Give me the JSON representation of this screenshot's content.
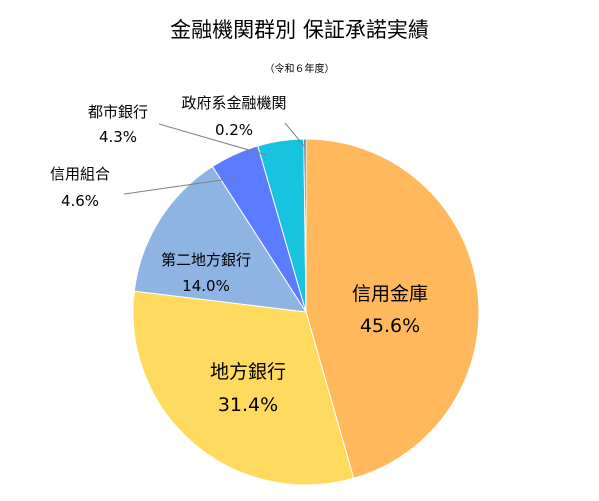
{
  "chart_data": {
    "type": "pie",
    "title": "金融機関群別 保証承諾実績",
    "subtitle": "（令和６年度）",
    "slices": [
      {
        "label": "信用金庫",
        "value": 45.6,
        "display": "45.6%",
        "color": "#FFB95C"
      },
      {
        "label": "地方銀行",
        "value": 31.4,
        "display": "31.4%",
        "color": "#FFDA5E"
      },
      {
        "label": "第二地方銀行",
        "value": 14.0,
        "display": "14.0%",
        "color": "#8EB4E3"
      },
      {
        "label": "信用組合",
        "value": 4.6,
        "display": "4.6%",
        "color": "#5C7CFF"
      },
      {
        "label": "都市銀行",
        "value": 4.3,
        "display": "4.3%",
        "color": "#17C3DF"
      },
      {
        "label": "政府系金融機関",
        "value": 0.2,
        "display": "0.2%",
        "color": "#1F4E79"
      }
    ],
    "start_angle": "12 o'clock",
    "direction": "clockwise"
  }
}
